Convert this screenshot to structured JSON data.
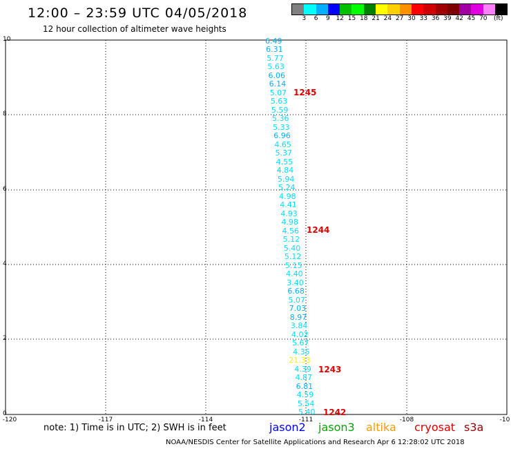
{
  "title": "12:00 – 23:59 UTC 04/05/2018",
  "subtitle": "12 hour collection of altimeter wave heights",
  "colorbar": {
    "colors": [
      "#808080",
      "#00ffff",
      "#00b0ff",
      "#0000ff",
      "#00c000",
      "#00ff00",
      "#008000",
      "#ffff00",
      "#ffd000",
      "#ff9000",
      "#ff0000",
      "#d00000",
      "#a00000",
      "#800000",
      "#a000a0",
      "#e000e0",
      "#ff80ff",
      "#000000"
    ],
    "labels": [
      "3",
      "6",
      "9",
      "12",
      "15",
      "18",
      "21",
      "24",
      "27",
      "30",
      "33",
      "36",
      "39",
      "42",
      "45",
      "70"
    ],
    "unit": "(ft)"
  },
  "axes": {
    "y_ticks": [
      "10",
      "8",
      "6",
      "4",
      "2",
      "0"
    ],
    "x_ticks": [
      "-120",
      "-117",
      "-114",
      "-111",
      "-108",
      "-10"
    ]
  },
  "note": "note: 1) Time is in UTC; 2) SWH is in feet",
  "legend": [
    {
      "name": "jason2",
      "color": "#0000ff"
    },
    {
      "name": "jason3",
      "color": "#00aa00"
    },
    {
      "name": "altika",
      "color": "#ff9900"
    },
    {
      "name": "cryosat",
      "color": "#dd0000"
    },
    {
      "name": "s3a",
      "color": "#990000"
    }
  ],
  "credit": "NOAA/NESDIS Center for Satellite Applications and Research   Apr  6 12:28:02 UTC 2018",
  "swh_readings": [
    {
      "value": "6.49",
      "color": "#00b0ff"
    },
    {
      "value": "6.31",
      "color": "#00b0ff"
    },
    {
      "value": "5.77",
      "color": "#00dfff"
    },
    {
      "value": "5.63",
      "color": "#00dfff"
    },
    {
      "value": "6.06",
      "color": "#00b0ff"
    },
    {
      "value": "6.14",
      "color": "#00b0ff"
    },
    {
      "value": "5.07",
      "color": "#00dfff"
    },
    {
      "value": "5.63",
      "color": "#00dfff"
    },
    {
      "value": "5.59",
      "color": "#00dfff"
    },
    {
      "value": "5.36",
      "color": "#00dfff"
    },
    {
      "value": "5.33",
      "color": "#00dfff"
    },
    {
      "value": "6.96",
      "color": "#00b0ff"
    },
    {
      "value": "4.65",
      "color": "#00dfff"
    },
    {
      "value": "5.37",
      "color": "#00dfff"
    },
    {
      "value": "4.55",
      "color": "#00dfff"
    },
    {
      "value": "4.84",
      "color": "#00dfff"
    },
    {
      "value": "5.94",
      "color": "#00dfff"
    },
    {
      "value": "5.24",
      "color": "#00dfff"
    },
    {
      "value": "4.98",
      "color": "#00dfff"
    },
    {
      "value": "4.41",
      "color": "#00dfff"
    },
    {
      "value": "4.93",
      "color": "#00dfff"
    },
    {
      "value": "4.98",
      "color": "#00dfff"
    },
    {
      "value": "4.56",
      "color": "#00dfff"
    },
    {
      "value": "5.12",
      "color": "#00dfff"
    },
    {
      "value": "5.40",
      "color": "#00dfff"
    },
    {
      "value": "5.12",
      "color": "#00dfff"
    },
    {
      "value": "5.15",
      "color": "#00dfff"
    },
    {
      "value": "4.40",
      "color": "#00dfff"
    },
    {
      "value": "3.40",
      "color": "#00dfff"
    },
    {
      "value": "6.68",
      "color": "#00b0ff"
    },
    {
      "value": "5.07",
      "color": "#00dfff"
    },
    {
      "value": "7.03",
      "color": "#00b0ff"
    },
    {
      "value": "8.97",
      "color": "#00b0ff"
    },
    {
      "value": "3.84",
      "color": "#00dfff"
    },
    {
      "value": "4.02",
      "color": "#00dfff"
    },
    {
      "value": "5.67",
      "color": "#00dfff"
    },
    {
      "value": "4.35",
      "color": "#00dfff"
    },
    {
      "value": "21.33",
      "color": "#ffee00"
    },
    {
      "value": "4.39",
      "color": "#00dfff"
    },
    {
      "value": "4.87",
      "color": "#00dfff"
    },
    {
      "value": "6.81",
      "color": "#00b0ff"
    },
    {
      "value": "4.59",
      "color": "#00dfff"
    },
    {
      "value": "5.54",
      "color": "#00dfff"
    },
    {
      "value": "5.40",
      "color": "#00dfff"
    }
  ],
  "pass_labels": [
    "1245",
    "1244",
    "1243",
    "1242"
  ]
}
